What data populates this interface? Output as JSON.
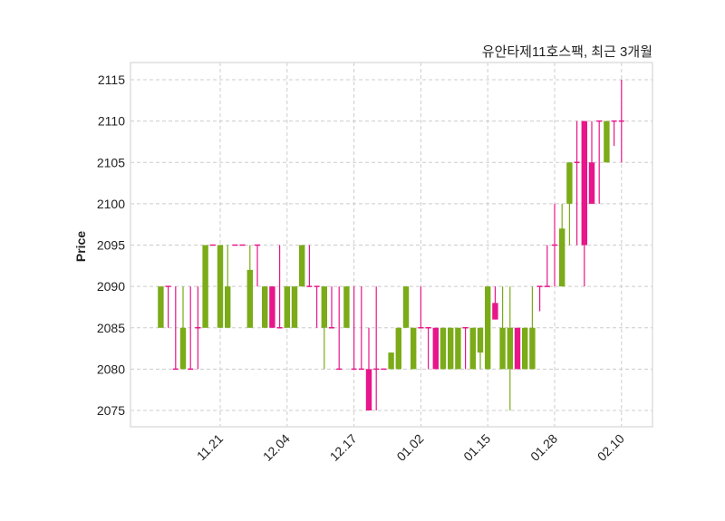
{
  "chart_data": {
    "type": "candlestick",
    "title": "유안타제11호스팩, 최근 3개월",
    "xlabel": "",
    "ylabel": "Price",
    "ylim": [
      2073,
      2117
    ],
    "yticks": [
      2075,
      2080,
      2085,
      2090,
      2095,
      2100,
      2105,
      2110,
      2115
    ],
    "xtick_labels": [
      {
        "index": 8,
        "label": "11.21"
      },
      {
        "index": 17,
        "label": "12.04"
      },
      {
        "index": 26,
        "label": "12.17"
      },
      {
        "index": 35,
        "label": "01.02"
      },
      {
        "index": 44,
        "label": "01.15"
      },
      {
        "index": 53,
        "label": "01.28"
      },
      {
        "index": 62,
        "label": "02.10"
      }
    ],
    "grid": true,
    "colors": {
      "up": "#7bab18",
      "down": "#e8168a",
      "grid": "#cccccc",
      "frame": "#dddddd"
    },
    "ohlc": [
      [
        2085,
        2090,
        2085,
        2090
      ],
      [
        2090,
        2090,
        2085,
        2090
      ],
      [
        2080,
        2090,
        2080,
        2080
      ],
      [
        2080,
        2090,
        2080,
        2085
      ],
      [
        2080,
        2090,
        2080,
        2080
      ],
      [
        2085,
        2090,
        2080,
        2085
      ],
      [
        2085,
        2095,
        2085,
        2095
      ],
      [
        2095,
        2095,
        2095,
        2095
      ],
      [
        2085,
        2095,
        2085,
        2095
      ],
      [
        2085,
        2095,
        2085,
        2090
      ],
      [
        2095,
        2095,
        2095,
        2095
      ],
      [
        2095,
        2095,
        2095,
        2095
      ],
      [
        2085,
        2095,
        2085,
        2092
      ],
      [
        2095,
        2095,
        2090,
        2095
      ],
      [
        2085,
        2090,
        2085,
        2090
      ],
      [
        2090,
        2090,
        2085,
        2085
      ],
      [
        2085,
        2095,
        2085,
        2085
      ],
      [
        2085,
        2090,
        2085,
        2090
      ],
      [
        2085,
        2090,
        2085,
        2090
      ],
      [
        2090,
        2095,
        2090,
        2095
      ],
      [
        2090,
        2095,
        2090,
        2090
      ],
      [
        2090,
        2090,
        2085,
        2090
      ],
      [
        2085,
        2090,
        2080,
        2090
      ],
      [
        2085,
        2090,
        2085,
        2085
      ],
      [
        2080,
        2090,
        2080,
        2080
      ],
      [
        2085,
        2090,
        2085,
        2090
      ],
      [
        2080,
        2090,
        2080,
        2080
      ],
      [
        2080,
        2090,
        2080,
        2080
      ],
      [
        2080,
        2085,
        2075,
        2075
      ],
      [
        2080,
        2090,
        2075,
        2080
      ],
      [
        2080,
        2080,
        2080,
        2080
      ],
      [
        2080,
        2082,
        2080,
        2082
      ],
      [
        2080,
        2085,
        2080,
        2085
      ],
      [
        2085,
        2090,
        2085,
        2090
      ],
      [
        2080,
        2085,
        2080,
        2085
      ],
      [
        2085,
        2090,
        2085,
        2085
      ],
      [
        2085,
        2085,
        2080,
        2085
      ],
      [
        2085,
        2085,
        2080,
        2080
      ],
      [
        2080,
        2085,
        2080,
        2085
      ],
      [
        2080,
        2085,
        2080,
        2085
      ],
      [
        2080,
        2085,
        2080,
        2085
      ],
      [
        2085,
        2085,
        2080,
        2085
      ],
      [
        2080,
        2085,
        2080,
        2085
      ],
      [
        2082,
        2085,
        2080,
        2085
      ],
      [
        2080,
        2090,
        2080,
        2090
      ],
      [
        2088,
        2090,
        2086,
        2086
      ],
      [
        2080,
        2090,
        2080,
        2085
      ],
      [
        2080,
        2090,
        2075,
        2085
      ],
      [
        2085,
        2085,
        2080,
        2080
      ],
      [
        2080,
        2085,
        2080,
        2085
      ],
      [
        2080,
        2090,
        2080,
        2085
      ],
      [
        2090,
        2090,
        2087,
        2090
      ],
      [
        2090,
        2095,
        2090,
        2090
      ],
      [
        2095,
        2100,
        2090,
        2095
      ],
      [
        2090,
        2100,
        2090,
        2097
      ],
      [
        2100,
        2105,
        2095,
        2105
      ],
      [
        2105,
        2110,
        2095,
        2105
      ],
      [
        2110,
        2110,
        2090,
        2095
      ],
      [
        2105,
        2110,
        2100,
        2100
      ],
      [
        2110,
        2110,
        2100,
        2110
      ],
      [
        2105,
        2110,
        2105,
        2110
      ],
      [
        2110,
        2110,
        2107,
        2110
      ],
      [
        2110,
        2115,
        2105,
        2110
      ]
    ]
  }
}
